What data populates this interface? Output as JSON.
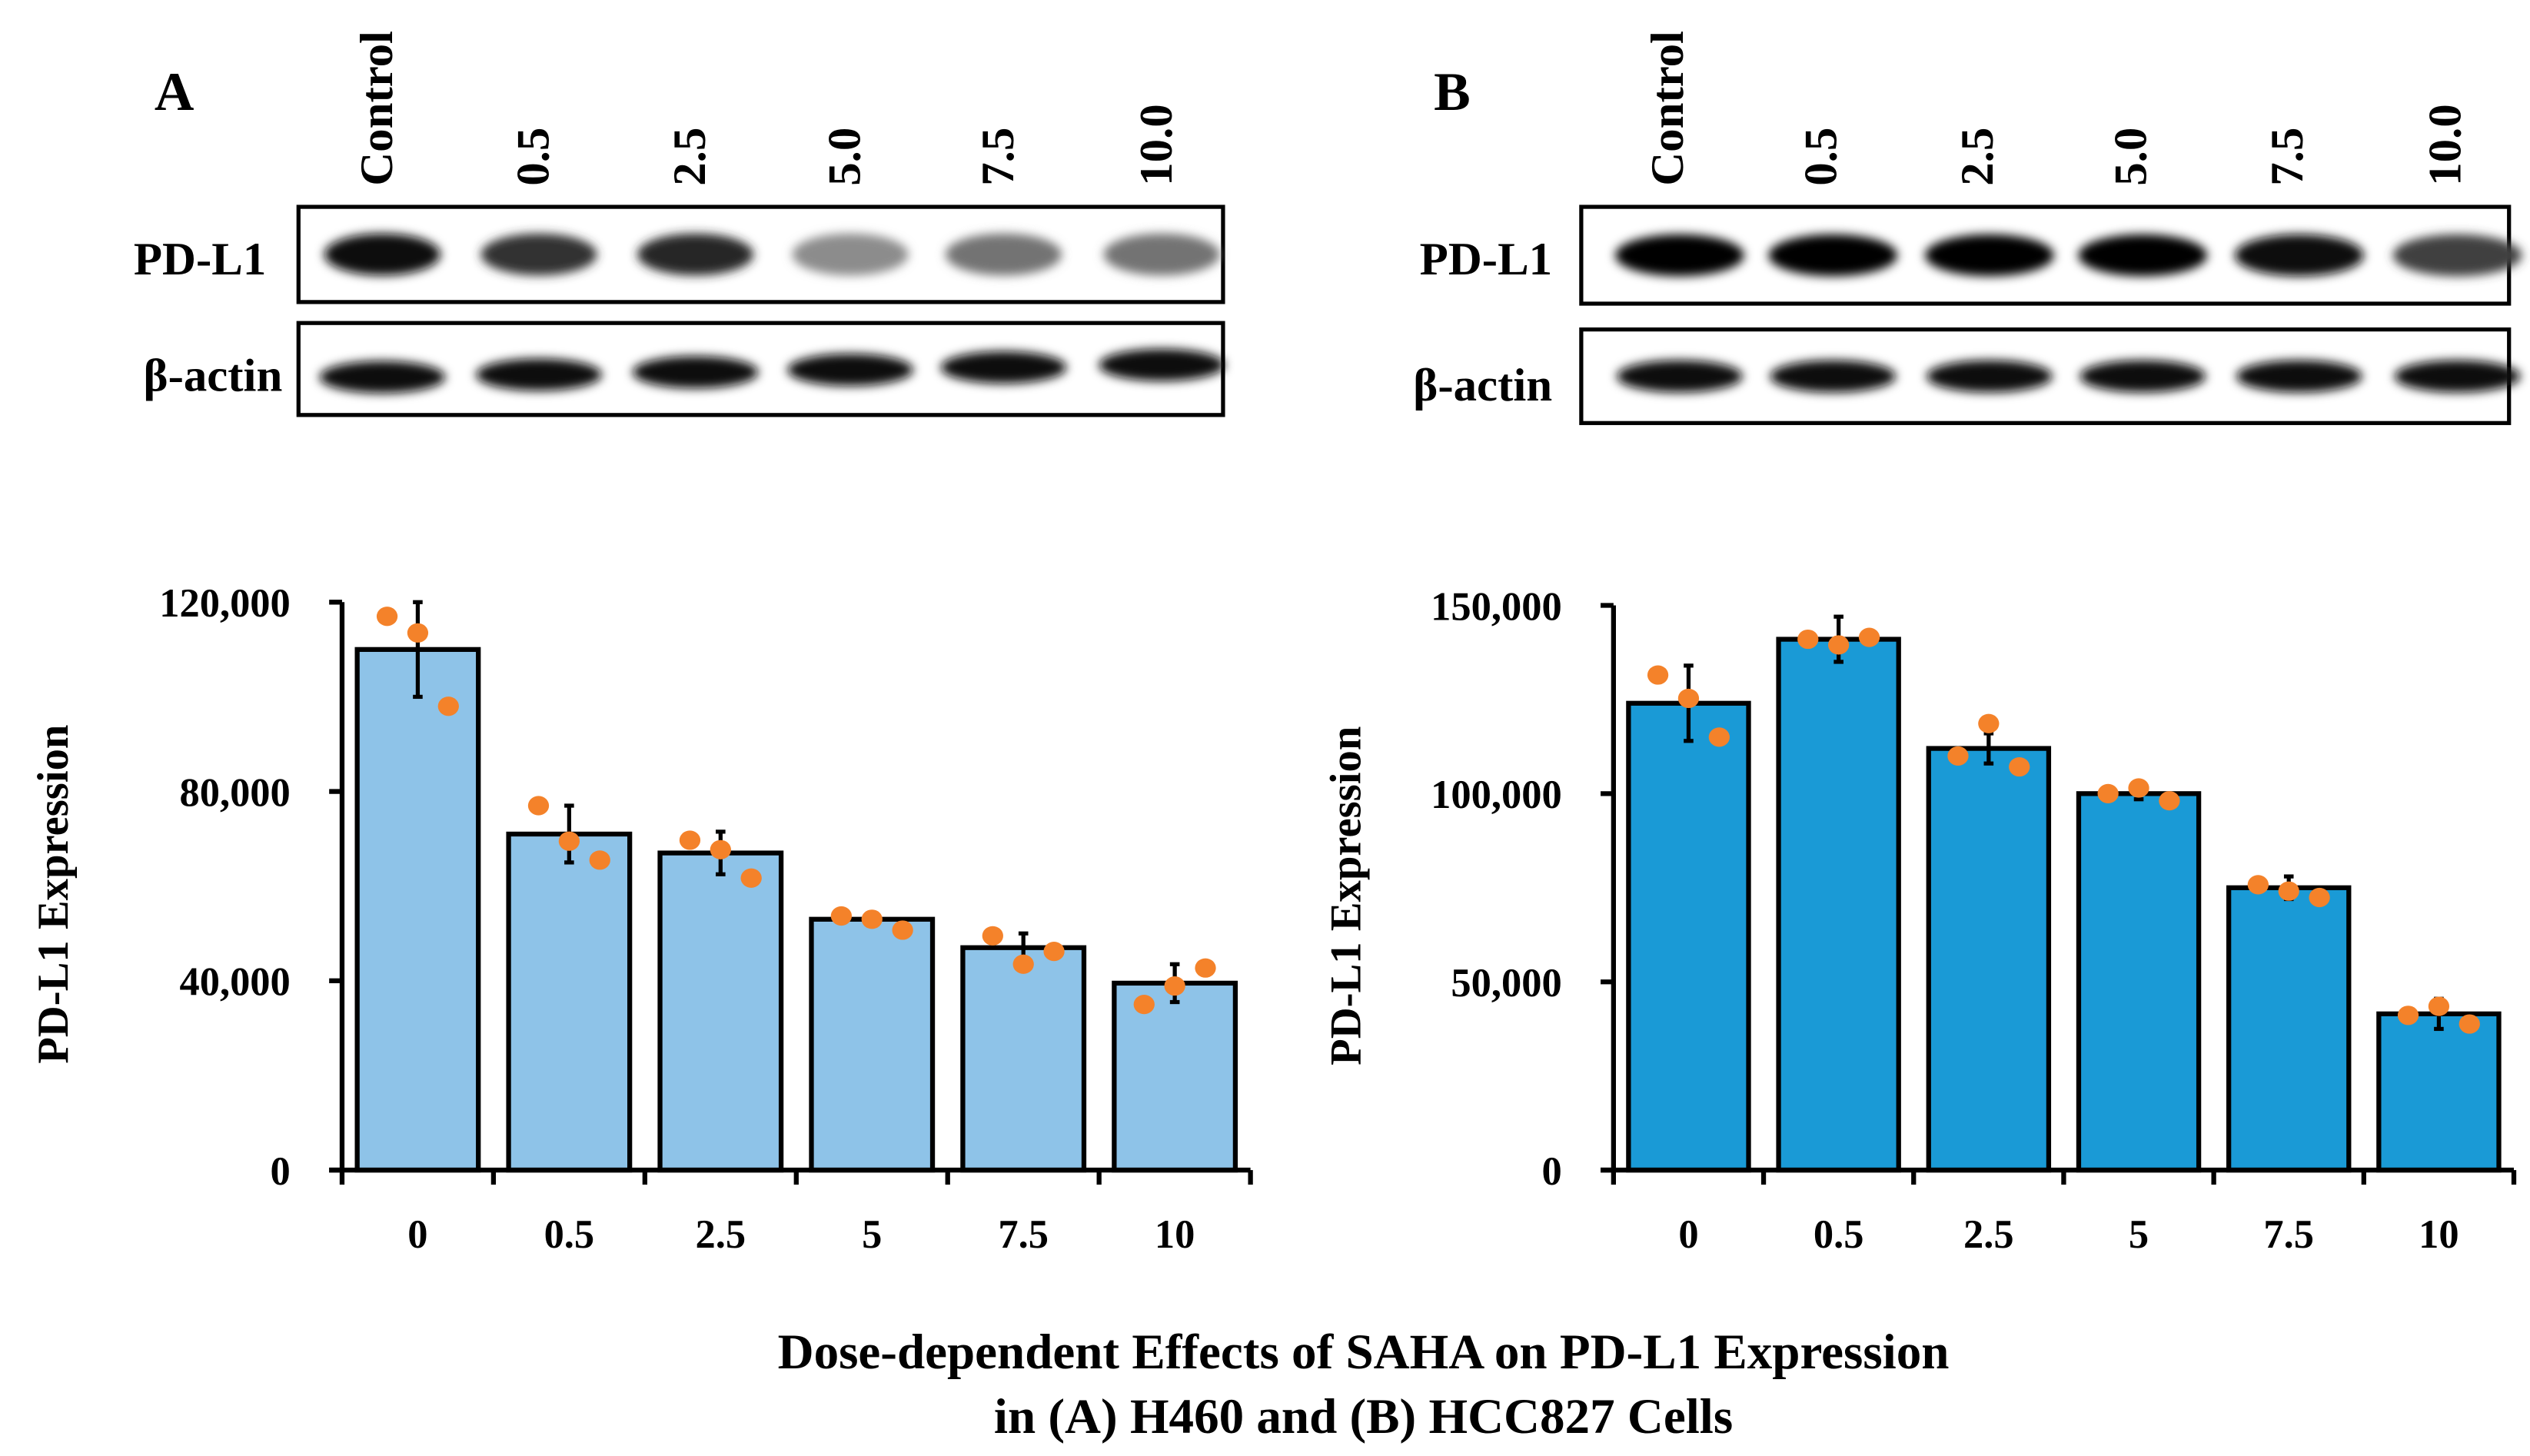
{
  "panels": [
    {
      "letter": "A",
      "lanes": [
        "Control",
        "0.5",
        "2.5",
        "5.0",
        "7.5",
        "10.0"
      ],
      "blot_labels": [
        "PD-L1",
        "β-actin"
      ]
    },
    {
      "letter": "B",
      "lanes": [
        "Control",
        "0.5",
        "2.5",
        "5.0",
        "7.5",
        "10.0"
      ],
      "blot_labels": [
        "PD-L1",
        "β-actin"
      ]
    }
  ],
  "caption": {
    "line1": "Dose-dependent Effects of SAHA on PD-L1 Expression",
    "line2": "in (A) H460 and (B) HCC827 Cells"
  },
  "chart_data": [
    {
      "type": "bar",
      "panel": "A",
      "categories": [
        "0",
        "0.5",
        "2.5",
        "5",
        "7.5",
        "10"
      ],
      "values": [
        110000,
        71000,
        67000,
        53000,
        47000,
        39500
      ],
      "error": [
        10000,
        6000,
        4500,
        1000,
        3000,
        4000
      ],
      "points": [
        [
          117000,
          113500,
          98000
        ],
        [
          77000,
          69500,
          65500
        ],
        [
          69700,
          67700,
          61700
        ],
        [
          53700,
          53000,
          50700
        ],
        [
          49500,
          43500,
          46200
        ],
        [
          35000,
          38900,
          42700
        ]
      ],
      "xlabel": "",
      "ylabel": "PD-L1 Expression",
      "ylim": [
        0,
        120000
      ],
      "yticks": [
        0,
        40000,
        80000,
        120000
      ],
      "ytick_labels": [
        "0",
        "40,000",
        "80,000",
        "120,000"
      ],
      "grid": false,
      "bar_color": "#8ec3e8",
      "point_color": "#f4822a"
    },
    {
      "type": "bar",
      "panel": "B",
      "categories": [
        "0",
        "0.5",
        "2.5",
        "5",
        "7.5",
        "10"
      ],
      "values": [
        124000,
        141000,
        112000,
        100000,
        75000,
        41500
      ],
      "error": [
        10000,
        6000,
        4000,
        1500,
        3000,
        4000
      ],
      "points": [
        [
          131500,
          125300,
          115000
        ],
        [
          141000,
          139500,
          141500
        ],
        [
          110000,
          118600,
          107100
        ],
        [
          100000,
          101500,
          98100
        ],
        [
          75800,
          74100,
          72400
        ],
        [
          41100,
          43500,
          38800
        ]
      ],
      "xlabel": "",
      "ylabel": "PD-L1 Expression",
      "ylim": [
        0,
        150000
      ],
      "yticks": [
        0,
        50000,
        100000,
        150000
      ],
      "ytick_labels": [
        "0",
        "50,000",
        "100,000",
        "150,000"
      ],
      "grid": false,
      "bar_color": "#1a9ad6",
      "point_color": "#f4822a"
    }
  ]
}
